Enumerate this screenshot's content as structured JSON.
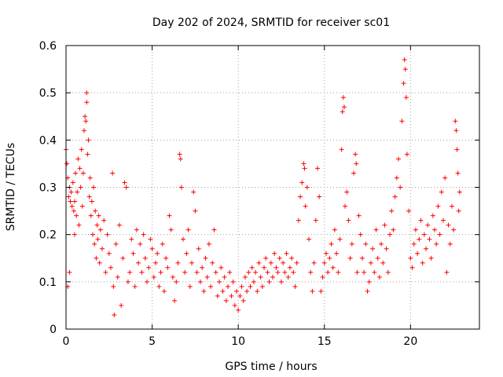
{
  "chart_data": {
    "type": "scatter",
    "title": "Day 202 of 2024, SRMTID for receiver sc01",
    "xlabel": "GPS time / hours",
    "ylabel": "SRMTID / TECUs",
    "xlim": [
      0,
      24
    ],
    "ylim": [
      0,
      0.6
    ],
    "xticks": [
      0,
      5,
      10,
      15,
      20
    ],
    "xtick_labels": [
      "0",
      "5",
      "10",
      "15",
      "20"
    ],
    "yticks": [
      0,
      0.1,
      0.2,
      0.3,
      0.4,
      0.5,
      0.6
    ],
    "ytick_labels": [
      "0",
      "0.1",
      "0.2",
      "0.3",
      "0.4",
      "0.5",
      "0.6"
    ],
    "grid": true,
    "marker": "+",
    "color": "#ff0000",
    "series": [
      {
        "name": "SRMTID",
        "points": [
          [
            0.0,
            0.38
          ],
          [
            0.05,
            0.35
          ],
          [
            0.1,
            0.32
          ],
          [
            0.1,
            0.09
          ],
          [
            0.15,
            0.28
          ],
          [
            0.2,
            0.3
          ],
          [
            0.2,
            0.12
          ],
          [
            0.25,
            0.27
          ],
          [
            0.3,
            0.29
          ],
          [
            0.35,
            0.26
          ],
          [
            0.4,
            0.31
          ],
          [
            0.45,
            0.25
          ],
          [
            0.5,
            0.27
          ],
          [
            0.5,
            0.2
          ],
          [
            0.55,
            0.33
          ],
          [
            0.6,
            0.24
          ],
          [
            0.65,
            0.29
          ],
          [
            0.7,
            0.36
          ],
          [
            0.75,
            0.22
          ],
          [
            0.8,
            0.34
          ],
          [
            0.85,
            0.3
          ],
          [
            0.9,
            0.38
          ],
          [
            0.95,
            0.26
          ],
          [
            1.0,
            0.33
          ],
          [
            1.05,
            0.42
          ],
          [
            1.1,
            0.45
          ],
          [
            1.15,
            0.44
          ],
          [
            1.2,
            0.5
          ],
          [
            1.2,
            0.48
          ],
          [
            1.25,
            0.37
          ],
          [
            1.3,
            0.4
          ],
          [
            1.35,
            0.28
          ],
          [
            1.4,
            0.32
          ],
          [
            1.45,
            0.24
          ],
          [
            1.5,
            0.27
          ],
          [
            1.55,
            0.2
          ],
          [
            1.6,
            0.3
          ],
          [
            1.65,
            0.18
          ],
          [
            1.7,
            0.25
          ],
          [
            1.75,
            0.15
          ],
          [
            1.8,
            0.22
          ],
          [
            1.85,
            0.19
          ],
          [
            1.9,
            0.24
          ],
          [
            1.95,
            0.14
          ],
          [
            2.0,
            0.21
          ],
          [
            2.1,
            0.17
          ],
          [
            2.2,
            0.23
          ],
          [
            2.3,
            0.12
          ],
          [
            2.4,
            0.2
          ],
          [
            2.5,
            0.16
          ],
          [
            2.6,
            0.13
          ],
          [
            2.7,
            0.33
          ],
          [
            2.75,
            0.09
          ],
          [
            2.8,
            0.03
          ],
          [
            2.9,
            0.18
          ],
          [
            3.0,
            0.11
          ],
          [
            3.1,
            0.22
          ],
          [
            3.2,
            0.05
          ],
          [
            3.3,
            0.15
          ],
          [
            3.4,
            0.31
          ],
          [
            3.5,
            0.3
          ],
          [
            3.6,
            0.1
          ],
          [
            3.7,
            0.12
          ],
          [
            3.8,
            0.19
          ],
          [
            3.9,
            0.16
          ],
          [
            4.0,
            0.09
          ],
          [
            4.1,
            0.21
          ],
          [
            4.2,
            0.14
          ],
          [
            4.3,
            0.18
          ],
          [
            4.4,
            0.12
          ],
          [
            4.5,
            0.2
          ],
          [
            4.6,
            0.15
          ],
          [
            4.7,
            0.1
          ],
          [
            4.8,
            0.13
          ],
          [
            4.9,
            0.19
          ],
          [
            5.0,
            0.17
          ],
          [
            5.1,
            0.11
          ],
          [
            5.2,
            0.14
          ],
          [
            5.3,
            0.16
          ],
          [
            5.4,
            0.09
          ],
          [
            5.5,
            0.12
          ],
          [
            5.6,
            0.18
          ],
          [
            5.7,
            0.08
          ],
          [
            5.8,
            0.15
          ],
          [
            5.9,
            0.13
          ],
          [
            6.0,
            0.24
          ],
          [
            6.1,
            0.21
          ],
          [
            6.2,
            0.11
          ],
          [
            6.3,
            0.06
          ],
          [
            6.4,
            0.1
          ],
          [
            6.5,
            0.14
          ],
          [
            6.6,
            0.37
          ],
          [
            6.65,
            0.36
          ],
          [
            6.7,
            0.3
          ],
          [
            6.8,
            0.19
          ],
          [
            6.9,
            0.12
          ],
          [
            7.0,
            0.16
          ],
          [
            7.1,
            0.21
          ],
          [
            7.2,
            0.09
          ],
          [
            7.3,
            0.14
          ],
          [
            7.4,
            0.29
          ],
          [
            7.5,
            0.25
          ],
          [
            7.6,
            0.12
          ],
          [
            7.7,
            0.17
          ],
          [
            7.8,
            0.1
          ],
          [
            7.9,
            0.13
          ],
          [
            8.0,
            0.08
          ],
          [
            8.1,
            0.15
          ],
          [
            8.2,
            0.11
          ],
          [
            8.3,
            0.18
          ],
          [
            8.4,
            0.09
          ],
          [
            8.5,
            0.14
          ],
          [
            8.6,
            0.21
          ],
          [
            8.7,
            0.12
          ],
          [
            8.8,
            0.07
          ],
          [
            8.9,
            0.1
          ],
          [
            9.0,
            0.13
          ],
          [
            9.1,
            0.08
          ],
          [
            9.2,
            0.11
          ],
          [
            9.3,
            0.06
          ],
          [
            9.4,
            0.09
          ],
          [
            9.5,
            0.12
          ],
          [
            9.6,
            0.07
          ],
          [
            9.7,
            0.1
          ],
          [
            9.8,
            0.05
          ],
          [
            9.9,
            0.08
          ],
          [
            10.0,
            0.04
          ],
          [
            10.1,
            0.07
          ],
          [
            10.2,
            0.09
          ],
          [
            10.3,
            0.06
          ],
          [
            10.4,
            0.11
          ],
          [
            10.5,
            0.08
          ],
          [
            10.6,
            0.12
          ],
          [
            10.7,
            0.09
          ],
          [
            10.8,
            0.13
          ],
          [
            10.9,
            0.1
          ],
          [
            11.0,
            0.12
          ],
          [
            11.1,
            0.08
          ],
          [
            11.2,
            0.14
          ],
          [
            11.3,
            0.11
          ],
          [
            11.4,
            0.09
          ],
          [
            11.5,
            0.13
          ],
          [
            11.6,
            0.15
          ],
          [
            11.7,
            0.12
          ],
          [
            11.8,
            0.1
          ],
          [
            11.9,
            0.14
          ],
          [
            12.0,
            0.11
          ],
          [
            12.1,
            0.16
          ],
          [
            12.2,
            0.13
          ],
          [
            12.3,
            0.12
          ],
          [
            12.4,
            0.15
          ],
          [
            12.5,
            0.1
          ],
          [
            12.6,
            0.14
          ],
          [
            12.7,
            0.12
          ],
          [
            12.8,
            0.16
          ],
          [
            12.9,
            0.11
          ],
          [
            13.0,
            0.13
          ],
          [
            13.1,
            0.15
          ],
          [
            13.2,
            0.12
          ],
          [
            13.3,
            0.09
          ],
          [
            13.4,
            0.14
          ],
          [
            13.5,
            0.23
          ],
          [
            13.6,
            0.28
          ],
          [
            13.7,
            0.31
          ],
          [
            13.8,
            0.35
          ],
          [
            13.85,
            0.34
          ],
          [
            13.9,
            0.26
          ],
          [
            14.0,
            0.3
          ],
          [
            14.1,
            0.19
          ],
          [
            14.2,
            0.12
          ],
          [
            14.3,
            0.08
          ],
          [
            14.4,
            0.14
          ],
          [
            14.5,
            0.23
          ],
          [
            14.6,
            0.34
          ],
          [
            14.7,
            0.28
          ],
          [
            14.8,
            0.08
          ],
          [
            14.9,
            0.11
          ],
          [
            15.0,
            0.14
          ],
          [
            15.1,
            0.16
          ],
          [
            15.2,
            0.12
          ],
          [
            15.3,
            0.15
          ],
          [
            15.4,
            0.18
          ],
          [
            15.5,
            0.13
          ],
          [
            15.6,
            0.21
          ],
          [
            15.7,
            0.16
          ],
          [
            15.8,
            0.12
          ],
          [
            15.9,
            0.19
          ],
          [
            16.0,
            0.38
          ],
          [
            16.05,
            0.46
          ],
          [
            16.1,
            0.49
          ],
          [
            16.15,
            0.47
          ],
          [
            16.2,
            0.26
          ],
          [
            16.3,
            0.29
          ],
          [
            16.4,
            0.23
          ],
          [
            16.5,
            0.15
          ],
          [
            16.6,
            0.18
          ],
          [
            16.7,
            0.33
          ],
          [
            16.8,
            0.37
          ],
          [
            16.85,
            0.35
          ],
          [
            16.9,
            0.12
          ],
          [
            17.0,
            0.24
          ],
          [
            17.1,
            0.2
          ],
          [
            17.2,
            0.15
          ],
          [
            17.3,
            0.12
          ],
          [
            17.4,
            0.18
          ],
          [
            17.5,
            0.08
          ],
          [
            17.6,
            0.1
          ],
          [
            17.7,
            0.14
          ],
          [
            17.8,
            0.17
          ],
          [
            17.9,
            0.12
          ],
          [
            18.0,
            0.21
          ],
          [
            18.1,
            0.15
          ],
          [
            18.2,
            0.11
          ],
          [
            18.3,
            0.18
          ],
          [
            18.4,
            0.14
          ],
          [
            18.5,
            0.22
          ],
          [
            18.6,
            0.17
          ],
          [
            18.7,
            0.12
          ],
          [
            18.8,
            0.2
          ],
          [
            18.9,
            0.25
          ],
          [
            19.0,
            0.21
          ],
          [
            19.1,
            0.28
          ],
          [
            19.2,
            0.32
          ],
          [
            19.3,
            0.36
          ],
          [
            19.4,
            0.3
          ],
          [
            19.5,
            0.44
          ],
          [
            19.6,
            0.52
          ],
          [
            19.65,
            0.57
          ],
          [
            19.7,
            0.55
          ],
          [
            19.75,
            0.49
          ],
          [
            19.8,
            0.37
          ],
          [
            19.9,
            0.25
          ],
          [
            20.0,
            0.15
          ],
          [
            20.1,
            0.13
          ],
          [
            20.2,
            0.18
          ],
          [
            20.3,
            0.21
          ],
          [
            20.4,
            0.16
          ],
          [
            20.5,
            0.19
          ],
          [
            20.6,
            0.23
          ],
          [
            20.7,
            0.14
          ],
          [
            20.8,
            0.2
          ],
          [
            20.9,
            0.17
          ],
          [
            21.0,
            0.22
          ],
          [
            21.1,
            0.19
          ],
          [
            21.2,
            0.15
          ],
          [
            21.3,
            0.24
          ],
          [
            21.4,
            0.21
          ],
          [
            21.5,
            0.18
          ],
          [
            21.6,
            0.26
          ],
          [
            21.7,
            0.2
          ],
          [
            21.8,
            0.29
          ],
          [
            21.9,
            0.23
          ],
          [
            22.0,
            0.32
          ],
          [
            22.1,
            0.12
          ],
          [
            22.2,
            0.22
          ],
          [
            22.3,
            0.18
          ],
          [
            22.4,
            0.26
          ],
          [
            22.5,
            0.21
          ],
          [
            22.6,
            0.44
          ],
          [
            22.65,
            0.42
          ],
          [
            22.7,
            0.38
          ],
          [
            22.75,
            0.33
          ],
          [
            22.8,
            0.25
          ],
          [
            22.85,
            0.29
          ]
        ]
      }
    ]
  }
}
